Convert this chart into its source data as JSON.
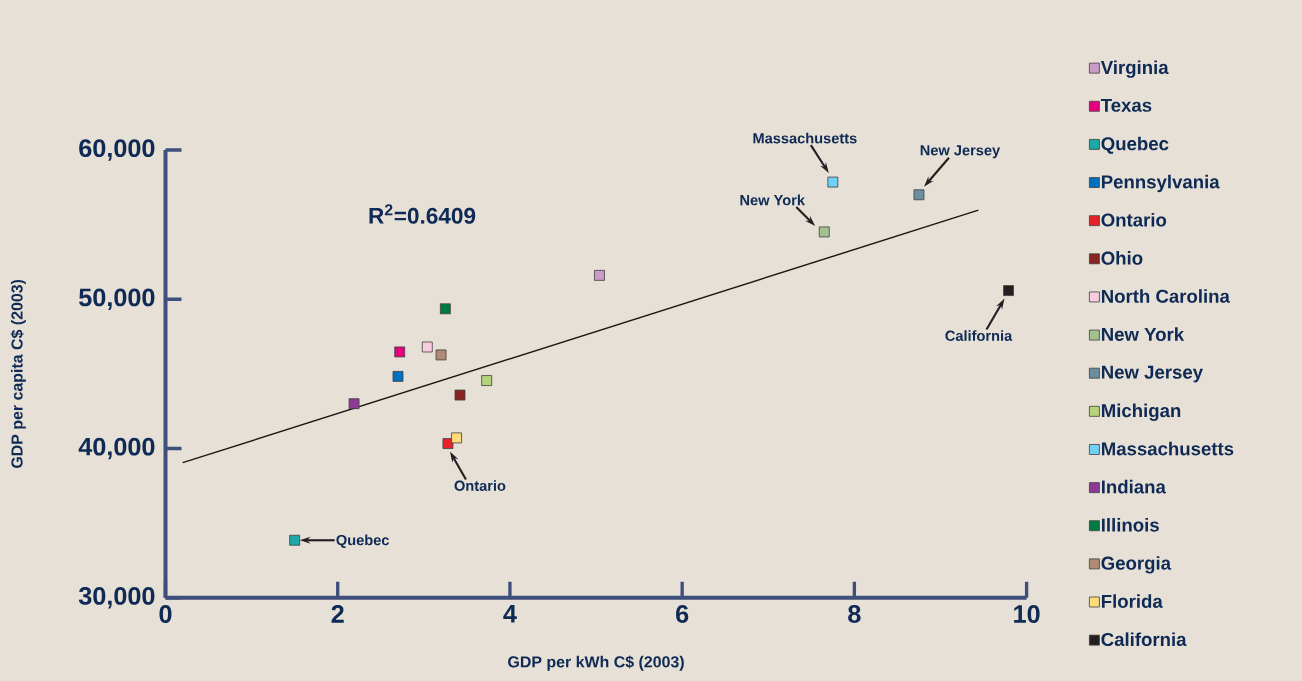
{
  "chart_data": {
    "type": "scatter",
    "xlabel": "GDP per kWh C$ (2003)",
    "ylabel": "GDP per capita C$ (2003)",
    "xlim": [
      0,
      10
    ],
    "ylim": [
      30000,
      60000
    ],
    "xticks": [
      0,
      2,
      4,
      6,
      8,
      10
    ],
    "yticks": [
      {
        "value": 30000,
        "label": "30,000"
      },
      {
        "value": 40000,
        "label": "40,000"
      },
      {
        "value": 50000,
        "label": "50,000"
      },
      {
        "value": 60000,
        "label": "60,000"
      }
    ],
    "marker": "square",
    "legend": "right",
    "grid": false,
    "series": [
      {
        "name": "Virginia",
        "color": "#c99bc8",
        "x": [
          5.04
        ],
        "values": [
          51600
        ]
      },
      {
        "name": "Texas",
        "color": "#e6007e",
        "x": [
          2.72
        ],
        "values": [
          46470
        ]
      },
      {
        "name": "Quebec",
        "color": "#1aa8a8",
        "x": [
          1.5
        ],
        "values": [
          33850
        ]
      },
      {
        "name": "Pennsylvania",
        "color": "#0070c0",
        "x": [
          2.7
        ],
        "values": [
          44830
        ]
      },
      {
        "name": "Ontario",
        "color": "#e8202a",
        "x": [
          3.28
        ],
        "values": [
          40330
        ]
      },
      {
        "name": "Ohio",
        "color": "#8b2320",
        "x": [
          3.42
        ],
        "values": [
          43580
        ]
      },
      {
        "name": "North Carolina",
        "color": "#f9cde0",
        "x": [
          3.04
        ],
        "values": [
          46800
        ]
      },
      {
        "name": "New York",
        "color": "#a4c08f",
        "x": [
          7.65
        ],
        "values": [
          54510
        ]
      },
      {
        "name": "New Jersey",
        "color": "#6b8ea0",
        "x": [
          8.75
        ],
        "values": [
          57000
        ]
      },
      {
        "name": "Michigan",
        "color": "#b5d37a",
        "x": [
          3.73
        ],
        "values": [
          44550
        ]
      },
      {
        "name": "Massachusetts",
        "color": "#6fd0f5",
        "x": [
          7.75
        ],
        "values": [
          57850
        ]
      },
      {
        "name": "Indiana",
        "color": "#8b3a96",
        "x": [
          2.19
        ],
        "values": [
          43000
        ]
      },
      {
        "name": "Illinois",
        "color": "#007a45",
        "x": [
          3.25
        ],
        "values": [
          49360
        ]
      },
      {
        "name": "Georgia",
        "color": "#b08a75",
        "x": [
          3.2
        ],
        "values": [
          46270
        ]
      },
      {
        "name": "Florida",
        "color": "#ffdc7a",
        "x": [
          3.38
        ],
        "values": [
          40710
        ]
      },
      {
        "name": "California",
        "color": "#231f20",
        "x": [
          9.79
        ],
        "values": [
          50580
        ]
      },
      {
        "type": "line",
        "marker": "none",
        "color": "#1a1a1a",
        "x": [
          0.2,
          9.44
        ],
        "values": [
          39050,
          55970
        ]
      }
    ],
    "annotations": [
      "R$^{2}$=0.6409",
      {
        "text": "Massachusetts",
        "x": 7.75,
        "y": 57850
      },
      {
        "text": "New Jersey",
        "x": 8.75,
        "y": 57000
      },
      {
        "text": "New York",
        "x": 7.65,
        "y": 54510
      },
      {
        "text": "California",
        "x": 9.79,
        "y": 50580
      },
      {
        "text": "Ontario",
        "x": 3.28,
        "y": 40330
      },
      {
        "text": "Quebec",
        "x": 1.5,
        "y": 33850
      }
    ]
  }
}
